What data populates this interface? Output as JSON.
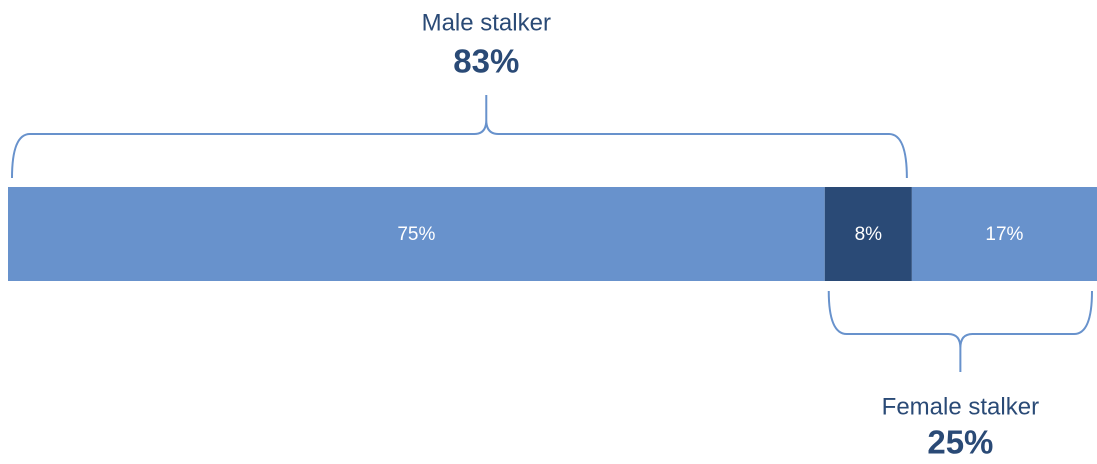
{
  "chart_data": {
    "type": "stacked_bar",
    "values": [
      75,
      8,
      17
    ],
    "value_labels": [
      "75%",
      "8%",
      "17%"
    ],
    "colors": [
      "#6892cc",
      "#2a4a76",
      "#6892cc"
    ],
    "xlim": [
      0,
      100
    ],
    "annotations": [
      {
        "label": "Male stalker",
        "value": 83,
        "value_label": "83%",
        "segments": [
          0,
          1
        ],
        "side": "top"
      },
      {
        "label": "Female stalker",
        "value": 25,
        "value_label": "25%",
        "segments": [
          1,
          2
        ],
        "side": "bottom"
      }
    ]
  }
}
